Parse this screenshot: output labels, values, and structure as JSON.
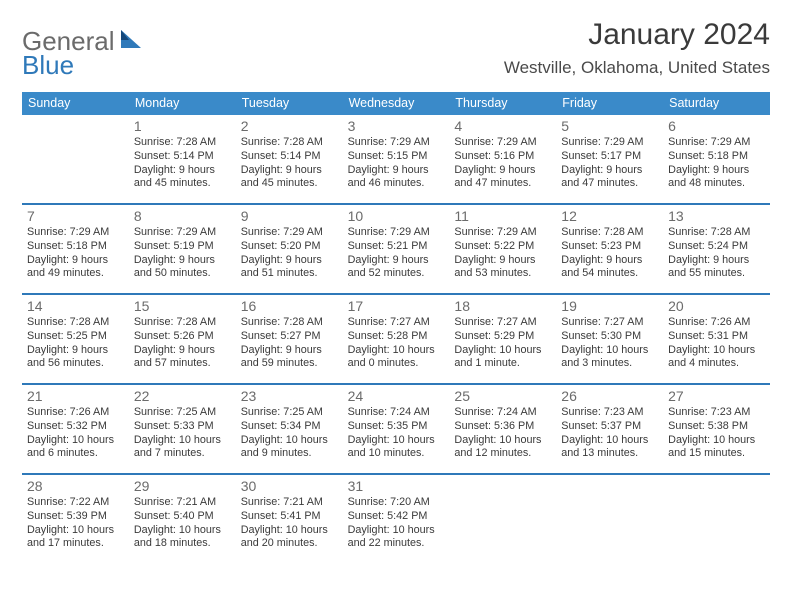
{
  "logo": {
    "general": "General",
    "blue": "Blue"
  },
  "title": "January 2024",
  "location": "Westville, Oklahoma, United States",
  "colors": {
    "header_bg": "#3a8ac9",
    "rule": "#2f79b9",
    "text": "#3a3a3a",
    "muted": "#6b6b6b",
    "white": "#ffffff"
  },
  "day_headers": [
    "Sunday",
    "Monday",
    "Tuesday",
    "Wednesday",
    "Thursday",
    "Friday",
    "Saturday"
  ],
  "weeks": [
    [
      {
        "n": "",
        "sr": "",
        "ss": "",
        "dl": ""
      },
      {
        "n": "1",
        "sr": "Sunrise: 7:28 AM",
        "ss": "Sunset: 5:14 PM",
        "dl": "Daylight: 9 hours and 45 minutes."
      },
      {
        "n": "2",
        "sr": "Sunrise: 7:28 AM",
        "ss": "Sunset: 5:14 PM",
        "dl": "Daylight: 9 hours and 45 minutes."
      },
      {
        "n": "3",
        "sr": "Sunrise: 7:29 AM",
        "ss": "Sunset: 5:15 PM",
        "dl": "Daylight: 9 hours and 46 minutes."
      },
      {
        "n": "4",
        "sr": "Sunrise: 7:29 AM",
        "ss": "Sunset: 5:16 PM",
        "dl": "Daylight: 9 hours and 47 minutes."
      },
      {
        "n": "5",
        "sr": "Sunrise: 7:29 AM",
        "ss": "Sunset: 5:17 PM",
        "dl": "Daylight: 9 hours and 47 minutes."
      },
      {
        "n": "6",
        "sr": "Sunrise: 7:29 AM",
        "ss": "Sunset: 5:18 PM",
        "dl": "Daylight: 9 hours and 48 minutes."
      }
    ],
    [
      {
        "n": "7",
        "sr": "Sunrise: 7:29 AM",
        "ss": "Sunset: 5:18 PM",
        "dl": "Daylight: 9 hours and 49 minutes."
      },
      {
        "n": "8",
        "sr": "Sunrise: 7:29 AM",
        "ss": "Sunset: 5:19 PM",
        "dl": "Daylight: 9 hours and 50 minutes."
      },
      {
        "n": "9",
        "sr": "Sunrise: 7:29 AM",
        "ss": "Sunset: 5:20 PM",
        "dl": "Daylight: 9 hours and 51 minutes."
      },
      {
        "n": "10",
        "sr": "Sunrise: 7:29 AM",
        "ss": "Sunset: 5:21 PM",
        "dl": "Daylight: 9 hours and 52 minutes."
      },
      {
        "n": "11",
        "sr": "Sunrise: 7:29 AM",
        "ss": "Sunset: 5:22 PM",
        "dl": "Daylight: 9 hours and 53 minutes."
      },
      {
        "n": "12",
        "sr": "Sunrise: 7:28 AM",
        "ss": "Sunset: 5:23 PM",
        "dl": "Daylight: 9 hours and 54 minutes."
      },
      {
        "n": "13",
        "sr": "Sunrise: 7:28 AM",
        "ss": "Sunset: 5:24 PM",
        "dl": "Daylight: 9 hours and 55 minutes."
      }
    ],
    [
      {
        "n": "14",
        "sr": "Sunrise: 7:28 AM",
        "ss": "Sunset: 5:25 PM",
        "dl": "Daylight: 9 hours and 56 minutes."
      },
      {
        "n": "15",
        "sr": "Sunrise: 7:28 AM",
        "ss": "Sunset: 5:26 PM",
        "dl": "Daylight: 9 hours and 57 minutes."
      },
      {
        "n": "16",
        "sr": "Sunrise: 7:28 AM",
        "ss": "Sunset: 5:27 PM",
        "dl": "Daylight: 9 hours and 59 minutes."
      },
      {
        "n": "17",
        "sr": "Sunrise: 7:27 AM",
        "ss": "Sunset: 5:28 PM",
        "dl": "Daylight: 10 hours and 0 minutes."
      },
      {
        "n": "18",
        "sr": "Sunrise: 7:27 AM",
        "ss": "Sunset: 5:29 PM",
        "dl": "Daylight: 10 hours and 1 minute."
      },
      {
        "n": "19",
        "sr": "Sunrise: 7:27 AM",
        "ss": "Sunset: 5:30 PM",
        "dl": "Daylight: 10 hours and 3 minutes."
      },
      {
        "n": "20",
        "sr": "Sunrise: 7:26 AM",
        "ss": "Sunset: 5:31 PM",
        "dl": "Daylight: 10 hours and 4 minutes."
      }
    ],
    [
      {
        "n": "21",
        "sr": "Sunrise: 7:26 AM",
        "ss": "Sunset: 5:32 PM",
        "dl": "Daylight: 10 hours and 6 minutes."
      },
      {
        "n": "22",
        "sr": "Sunrise: 7:25 AM",
        "ss": "Sunset: 5:33 PM",
        "dl": "Daylight: 10 hours and 7 minutes."
      },
      {
        "n": "23",
        "sr": "Sunrise: 7:25 AM",
        "ss": "Sunset: 5:34 PM",
        "dl": "Daylight: 10 hours and 9 minutes."
      },
      {
        "n": "24",
        "sr": "Sunrise: 7:24 AM",
        "ss": "Sunset: 5:35 PM",
        "dl": "Daylight: 10 hours and 10 minutes."
      },
      {
        "n": "25",
        "sr": "Sunrise: 7:24 AM",
        "ss": "Sunset: 5:36 PM",
        "dl": "Daylight: 10 hours and 12 minutes."
      },
      {
        "n": "26",
        "sr": "Sunrise: 7:23 AM",
        "ss": "Sunset: 5:37 PM",
        "dl": "Daylight: 10 hours and 13 minutes."
      },
      {
        "n": "27",
        "sr": "Sunrise: 7:23 AM",
        "ss": "Sunset: 5:38 PM",
        "dl": "Daylight: 10 hours and 15 minutes."
      }
    ],
    [
      {
        "n": "28",
        "sr": "Sunrise: 7:22 AM",
        "ss": "Sunset: 5:39 PM",
        "dl": "Daylight: 10 hours and 17 minutes."
      },
      {
        "n": "29",
        "sr": "Sunrise: 7:21 AM",
        "ss": "Sunset: 5:40 PM",
        "dl": "Daylight: 10 hours and 18 minutes."
      },
      {
        "n": "30",
        "sr": "Sunrise: 7:21 AM",
        "ss": "Sunset: 5:41 PM",
        "dl": "Daylight: 10 hours and 20 minutes."
      },
      {
        "n": "31",
        "sr": "Sunrise: 7:20 AM",
        "ss": "Sunset: 5:42 PM",
        "dl": "Daylight: 10 hours and 22 minutes."
      },
      {
        "n": "",
        "sr": "",
        "ss": "",
        "dl": ""
      },
      {
        "n": "",
        "sr": "",
        "ss": "",
        "dl": ""
      },
      {
        "n": "",
        "sr": "",
        "ss": "",
        "dl": ""
      }
    ]
  ]
}
